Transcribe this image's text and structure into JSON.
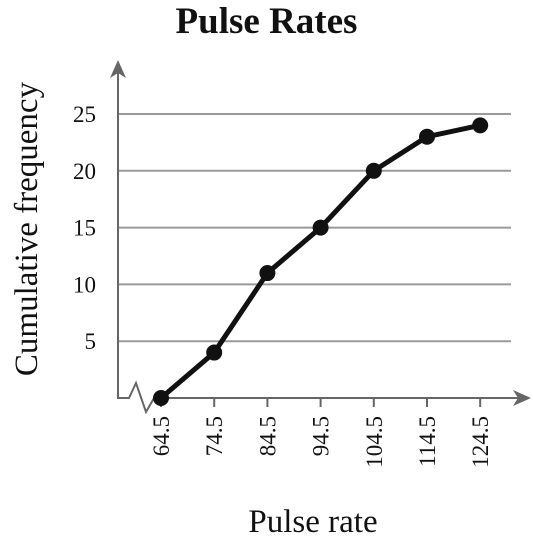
{
  "chart_data": {
    "type": "line",
    "title": "Pulse Rates",
    "xlabel": "Pulse rate",
    "ylabel": "Cumulative frequency",
    "x": [
      "64.5",
      "74.5",
      "84.5",
      "94.5",
      "104.5",
      "114.5",
      "124.5"
    ],
    "series": [
      {
        "values": [
          0,
          4,
          11,
          15,
          20,
          23,
          24
        ]
      }
    ],
    "ylim": [
      0,
      25
    ],
    "yticks": [
      5,
      10,
      15,
      20,
      25
    ],
    "grid": true,
    "x_axis_break": true,
    "colors": {
      "line": "#111111",
      "grid": "#9a9a9a",
      "axis": "#666666"
    }
  }
}
